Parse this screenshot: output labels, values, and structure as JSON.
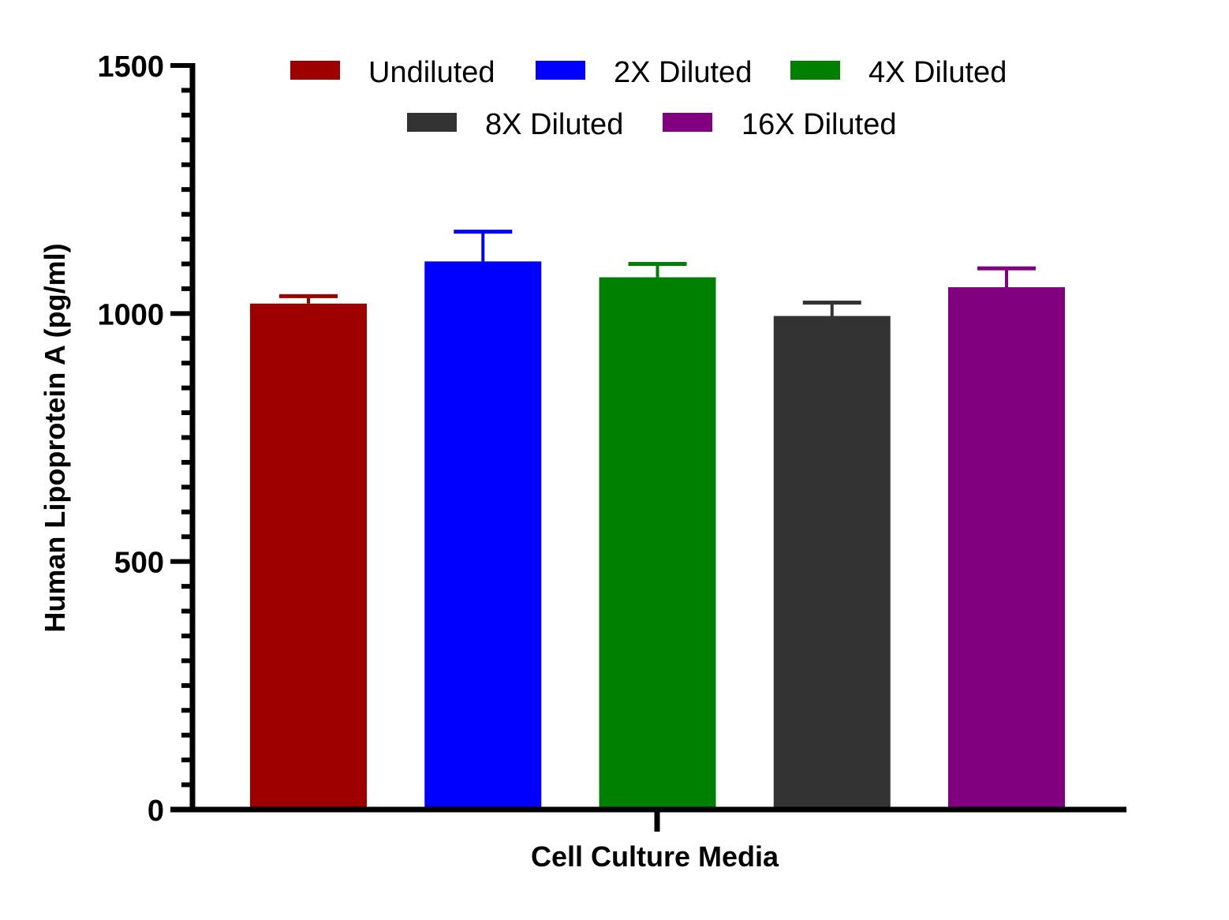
{
  "chart_data": {
    "type": "bar",
    "ylabel": "Human Lipoprotein A (pg/ml)",
    "xlabel": "Cell Culture Media",
    "ylim": [
      0,
      1500
    ],
    "yticks": [
      0,
      500,
      1000,
      1500
    ],
    "grid": false,
    "legend_position": "top",
    "series": [
      {
        "name": "Undiluted",
        "value": 1020,
        "error": 15,
        "color": "#9e0000"
      },
      {
        "name": "2X Diluted",
        "value": 1105,
        "error": 60,
        "color": "#0000ff"
      },
      {
        "name": "4X Diluted",
        "value": 1073,
        "error": 27,
        "color": "#008000"
      },
      {
        "name": "8X Diluted",
        "value": 995,
        "error": 27,
        "color": "#333333"
      },
      {
        "name": "16X Diluted",
        "value": 1053,
        "error": 38,
        "color": "#800080"
      }
    ]
  }
}
